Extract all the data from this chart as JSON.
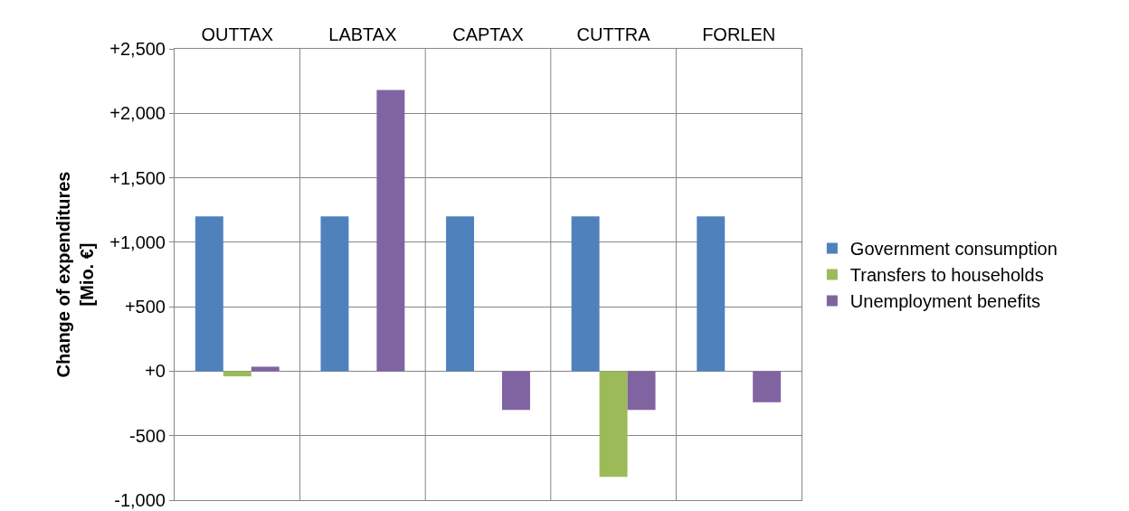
{
  "chart_data": {
    "type": "bar",
    "ylabel": "Change of expenditures\n[Mio. €]",
    "categories": [
      "OUTTAX",
      "LABTAX",
      "CAPTAX",
      "CUTTRA",
      "FORLEN"
    ],
    "series": [
      {
        "name": "Government consumption",
        "color": "#4f81bd",
        "values": [
          1200,
          1200,
          1200,
          1200,
          1200
        ]
      },
      {
        "name": "Transfers to households",
        "color": "#9bbb59",
        "values": [
          -40,
          0,
          0,
          -820,
          0
        ]
      },
      {
        "name": "Unemployment benefits",
        "color": "#8064a2",
        "values": [
          35,
          2180,
          -300,
          -300,
          -240
        ]
      }
    ],
    "ylim": [
      -1000,
      2500
    ],
    "yticks": [
      {
        "value": -1000,
        "label": "-1,000"
      },
      {
        "value": -500,
        "label": "-500"
      },
      {
        "value": 0,
        "label": "+0"
      },
      {
        "value": 500,
        "label": "+500"
      },
      {
        "value": 1000,
        "label": "+1,000"
      },
      {
        "value": 1500,
        "label": "+1,500"
      },
      {
        "value": 2000,
        "label": "+2,000"
      },
      {
        "value": 2500,
        "label": "+2,500"
      }
    ],
    "grid": true,
    "legend": "right"
  }
}
